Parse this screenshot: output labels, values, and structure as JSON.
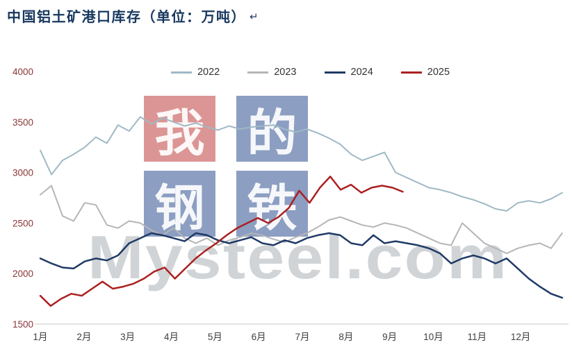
{
  "header": {
    "title": "中国铝土矿港口库存（单位：万吨）",
    "return_mark": "↵",
    "title_color": "#17375e"
  },
  "watermark": {
    "chars": [
      "我",
      "的",
      "钢",
      "铁"
    ],
    "char_colors": [
      "rgba(192,62,62,0.55)",
      "rgba(45,78,143,0.55)",
      "rgba(45,78,143,0.55)",
      "rgba(45,78,143,0.55)"
    ],
    "text": "Mysteel.com",
    "text_color": "rgba(172,177,182,0.55)"
  },
  "axis": {
    "y_label_color": "#8b3535",
    "x_label_color": "#3f3f3f",
    "axis_line_color": "#c8c8c8"
  },
  "chart_data": {
    "type": "line",
    "title": "中国铝土矿港口库存（单位：万吨）",
    "xlabel": "",
    "ylabel": "",
    "ylim": [
      1500,
      4000
    ],
    "yticks": [
      4000,
      3500,
      3000,
      2500,
      2000,
      1500
    ],
    "x_tick_labels": [
      "1月",
      "2月",
      "3月",
      "4月",
      "5月",
      "6月",
      "7月",
      "8月",
      "9月",
      "10月",
      "11月",
      "12月"
    ],
    "grid": false,
    "legend_position": "top",
    "series": [
      {
        "name": "2022",
        "color": "#9fb9c4",
        "width": 2,
        "x_start": 1,
        "x_end": 12.95,
        "values": [
          3220,
          2980,
          3120,
          3180,
          3250,
          3350,
          3290,
          3470,
          3410,
          3550,
          3480,
          3540,
          3500,
          3460,
          3490,
          3450,
          3420,
          3460,
          3430,
          3450,
          3460,
          3470,
          3430,
          3400,
          3430,
          3390,
          3340,
          3280,
          3180,
          3120,
          3160,
          3200,
          3000,
          2950,
          2900,
          2850,
          2830,
          2800,
          2760,
          2730,
          2690,
          2640,
          2620,
          2700,
          2720,
          2700,
          2740,
          2800
        ]
      },
      {
        "name": "2023",
        "color": "#b5b5b8",
        "width": 2,
        "x_start": 1,
        "x_end": 12.95,
        "values": [
          2780,
          2870,
          2570,
          2520,
          2700,
          2680,
          2480,
          2450,
          2520,
          2500,
          2430,
          2380,
          2450,
          2350,
          2300,
          2350,
          2280,
          2330,
          2360,
          2400,
          2380,
          2340,
          2310,
          2360,
          2400,
          2460,
          2530,
          2560,
          2520,
          2480,
          2460,
          2500,
          2480,
          2450,
          2400,
          2350,
          2300,
          2280,
          2500,
          2400,
          2300,
          2250,
          2200,
          2250,
          2280,
          2300,
          2250,
          2400
        ]
      },
      {
        "name": "2024",
        "color": "#1f3a66",
        "width": 2.5,
        "x_start": 1,
        "x_end": 12.95,
        "values": [
          2150,
          2100,
          2060,
          2050,
          2120,
          2150,
          2130,
          2180,
          2300,
          2350,
          2400,
          2380,
          2350,
          2320,
          2400,
          2380,
          2330,
          2300,
          2330,
          2360,
          2300,
          2280,
          2330,
          2300,
          2350,
          2380,
          2400,
          2380,
          2300,
          2280,
          2380,
          2300,
          2320,
          2300,
          2280,
          2250,
          2200,
          2100,
          2150,
          2180,
          2150,
          2100,
          2150,
          2050,
          1950,
          1870,
          1800,
          1760
        ]
      },
      {
        "name": "2025",
        "color": "#ab2020",
        "width": 2.5,
        "x_start": 1,
        "x_end": 9.3,
        "values": [
          1780,
          1680,
          1750,
          1800,
          1780,
          1850,
          1920,
          1850,
          1870,
          1900,
          1950,
          2020,
          2060,
          1950,
          2050,
          2150,
          2230,
          2300,
          2380,
          2450,
          2500,
          2550,
          2500,
          2560,
          2650,
          2820,
          2700,
          2850,
          2960,
          2830,
          2880,
          2800,
          2850,
          2870,
          2850,
          2810
        ]
      }
    ]
  }
}
